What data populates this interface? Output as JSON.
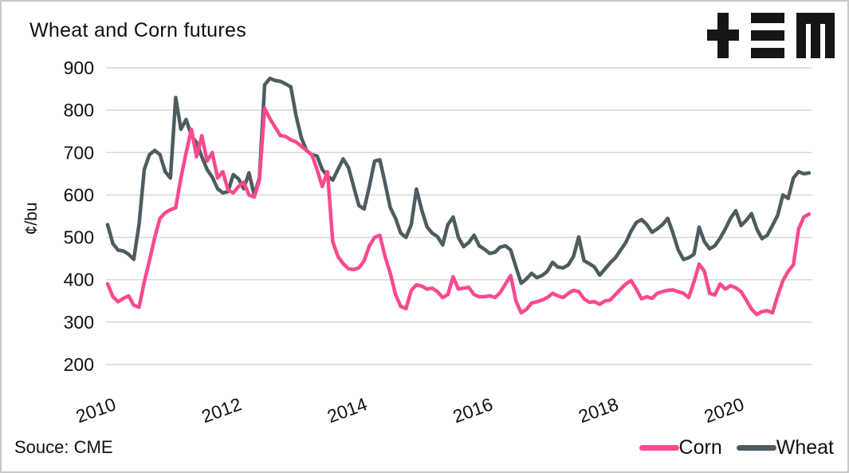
{
  "title": "Wheat and Corn futures",
  "source": "Souce: CME",
  "logo": {
    "name": "tem-logo"
  },
  "colors": {
    "corn": "#F9498F",
    "wheat": "#4D5C5F",
    "grid": "#D8D8D8",
    "text": "#101010",
    "logo": "#161616",
    "background": "#FFFFFF"
  },
  "chart_data": {
    "type": "line",
    "title": "Wheat and Corn futures",
    "xlabel": "",
    "ylabel": "¢/bu",
    "ylim": [
      200,
      900
    ],
    "yticks": [
      200,
      300,
      400,
      500,
      600,
      700,
      800,
      900
    ],
    "xticks": [
      2010,
      2012,
      2014,
      2016,
      2018,
      2020
    ],
    "grid": "horizontal",
    "legend_position": "bottom-right",
    "frequency": "monthly",
    "x_start": "2010-01",
    "x_end": "2021-03",
    "series": [
      {
        "name": "Corn",
        "color": "#F9498F",
        "values": [
          390,
          360,
          348,
          356,
          362,
          340,
          335,
          395,
          445,
          500,
          545,
          558,
          565,
          570,
          640,
          700,
          755,
          690,
          740,
          680,
          700,
          640,
          655,
          612,
          605,
          620,
          630,
          600,
          595,
          635,
          805,
          780,
          760,
          740,
          738,
          730,
          725,
          715,
          705,
          695,
          660,
          620,
          655,
          490,
          455,
          438,
          426,
          424,
          428,
          445,
          480,
          500,
          505,
          455,
          415,
          365,
          337,
          332,
          375,
          388,
          385,
          378,
          380,
          372,
          358,
          365,
          407,
          378,
          380,
          382,
          365,
          360,
          360,
          362,
          358,
          370,
          390,
          410,
          350,
          322,
          330,
          345,
          348,
          352,
          358,
          368,
          362,
          358,
          368,
          375,
          372,
          355,
          347,
          348,
          342,
          350,
          352,
          365,
          378,
          390,
          398,
          378,
          355,
          360,
          356,
          368,
          372,
          375,
          376,
          372,
          368,
          358,
          395,
          437,
          420,
          368,
          364,
          390,
          378,
          386,
          381,
          372,
          352,
          331,
          318,
          325,
          327,
          322,
          362,
          398,
          420,
          435,
          520,
          548,
          555
        ]
      },
      {
        "name": "Wheat",
        "color": "#4D5C5F",
        "values": [
          530,
          485,
          470,
          468,
          460,
          448,
          530,
          660,
          695,
          705,
          695,
          655,
          640,
          830,
          755,
          778,
          740,
          723,
          690,
          660,
          642,
          615,
          605,
          608,
          648,
          638,
          615,
          652,
          600,
          640,
          860,
          875,
          870,
          868,
          862,
          855,
          787,
          735,
          705,
          695,
          692,
          660,
          645,
          635,
          660,
          685,
          665,
          620,
          575,
          567,
          620,
          680,
          683,
          628,
          570,
          545,
          510,
          500,
          530,
          614,
          565,
          525,
          510,
          502,
          482,
          530,
          548,
          500,
          478,
          488,
          505,
          480,
          472,
          462,
          465,
          477,
          480,
          470,
          430,
          392,
          402,
          415,
          405,
          410,
          420,
          441,
          430,
          428,
          435,
          455,
          501,
          445,
          438,
          430,
          411,
          425,
          440,
          452,
          470,
          488,
          515,
          535,
          542,
          530,
          512,
          520,
          530,
          545,
          510,
          470,
          448,
          452,
          460,
          524,
          490,
          473,
          480,
          498,
          520,
          545,
          563,
          528,
          540,
          556,
          520,
          497,
          505,
          528,
          552,
          600,
          592,
          640,
          655,
          650,
          652
        ]
      }
    ]
  },
  "legend": {
    "items": [
      {
        "label": "Corn"
      },
      {
        "label": "Wheat"
      }
    ]
  }
}
